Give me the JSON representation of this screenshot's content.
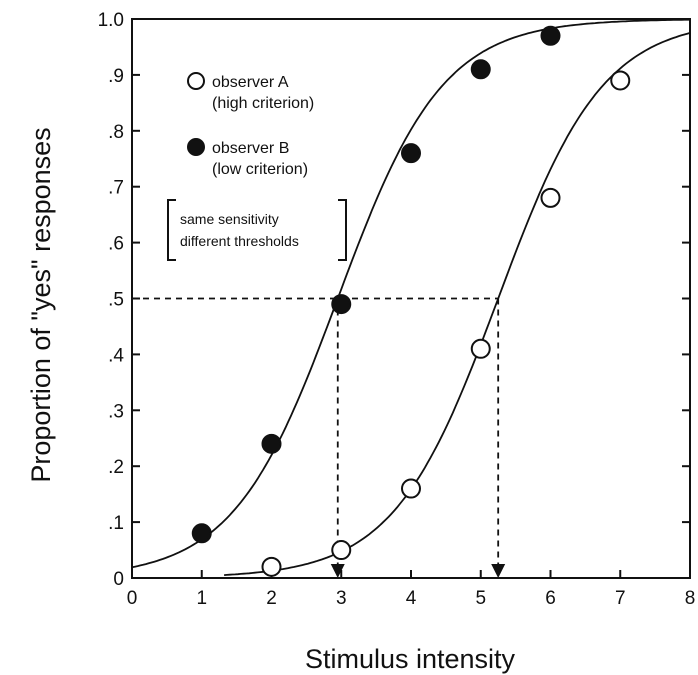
{
  "chart_data": {
    "type": "scatter",
    "xlabel": "Stimulus intensity",
    "ylabel": "Proportion of \"yes\" responses",
    "xlim": [
      0,
      8
    ],
    "ylim": [
      0,
      1.0
    ],
    "x_ticks": [
      "0",
      "1",
      "2",
      "3",
      "4",
      "5",
      "6",
      "7",
      "8"
    ],
    "y_ticks": [
      "0",
      ".1",
      ".2",
      ".3",
      ".4",
      ".5",
      ".6",
      ".7",
      ".8",
      ".9",
      "1.0"
    ],
    "grid": false,
    "series": [
      {
        "name": "observer A (high criterion)",
        "marker": "open-circle",
        "x": [
          2,
          3,
          4,
          5,
          6,
          7
        ],
        "y": [
          0.02,
          0.05,
          0.16,
          0.41,
          0.68,
          0.89
        ]
      },
      {
        "name": "observer B (low criterion)",
        "marker": "filled-circle",
        "x": [
          1,
          2,
          3,
          4,
          5,
          6
        ],
        "y": [
          0.08,
          0.24,
          0.49,
          0.76,
          0.91,
          0.97
        ]
      }
    ],
    "thresholds": [
      {
        "series": "observer B (low criterion)",
        "x": 2.95,
        "y": 0.5
      },
      {
        "series": "observer A (high criterion)",
        "x": 5.25,
        "y": 0.5
      }
    ],
    "legend": {
      "position": "top-left",
      "entries": [
        {
          "line1": "observer A",
          "line2": "(high criterion)"
        },
        {
          "line1": "observer B",
          "line2": "(low criterion)"
        }
      ]
    },
    "annotation": {
      "line1": "same sensitivity",
      "line2": "different thresholds"
    },
    "colors": {
      "ink": "#111111",
      "background": "#ffffff"
    }
  }
}
